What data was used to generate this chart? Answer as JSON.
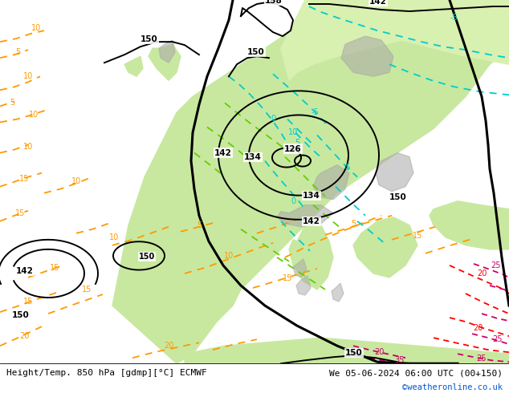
{
  "title_left": "Height/Temp. 850 hPa [gdmp][°C] ECMWF",
  "title_right": "We 05-06-2024 06:00 UTC (00+150)",
  "copyright": "©weatheronline.co.uk",
  "fig_width": 6.34,
  "fig_height": 4.9,
  "dpi": 100,
  "copyright_color": "#0055cc",
  "text_color": "#000000",
  "ocean_color": "#e8e8e8",
  "land_color": "#c8e8a0",
  "land_light_color": "#d8f0b0",
  "gray_terrain_color": "#a8a8a8",
  "geopot_color": "#000000",
  "temp_orange_color": "#ff9900",
  "temp_cyan_color": "#00cccc",
  "temp_green_color": "#66cc00",
  "temp_red_color": "#ff0000",
  "temp_pink_color": "#cc0066"
}
